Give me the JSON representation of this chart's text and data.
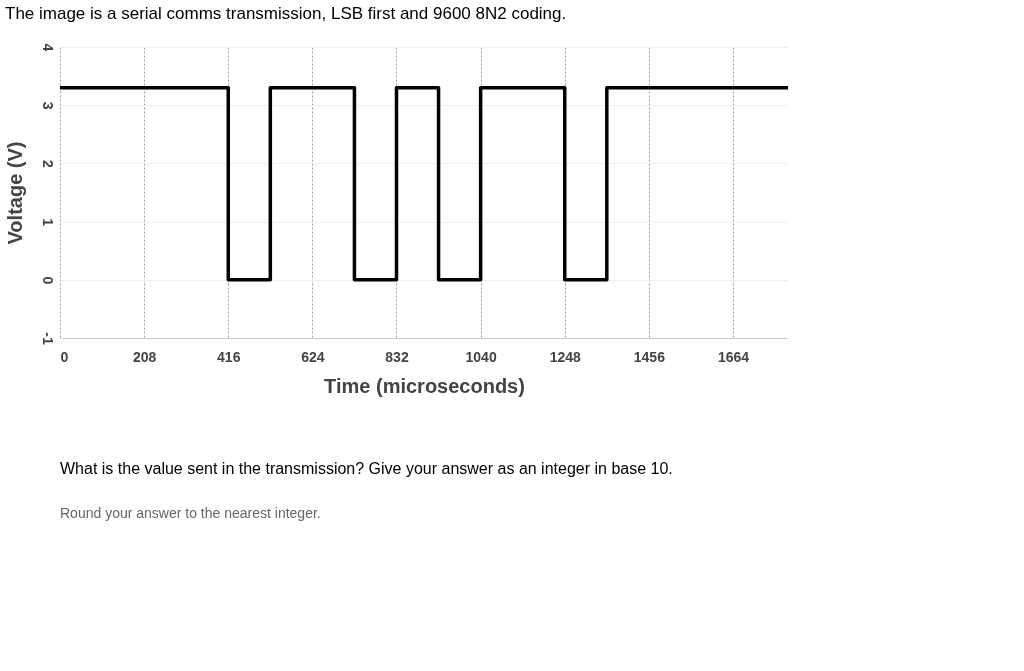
{
  "chart_data": {
    "type": "step",
    "title": "The image is a serial comms transmission, LSB first and 9600 8N2 coding.",
    "xlabel": "Time (microseconds)",
    "ylabel": "Voltage (V)",
    "x": [
      0,
      416,
      520,
      728,
      832,
      936,
      1040,
      1248,
      1352,
      1800
    ],
    "series": [
      {
        "color": "#000000",
        "values": [
          3.3,
          0,
          3.3,
          0,
          3.3,
          0,
          3.3,
          0,
          3.3,
          3.3
        ]
      }
    ],
    "xlim": [
      0,
      1800
    ],
    "xticks": [
      0,
      208,
      416,
      624,
      832,
      1040,
      1248,
      1456,
      1664
    ],
    "ylim": [
      -1,
      4
    ],
    "yticks": [
      -1,
      0,
      1,
      2,
      3,
      4
    ],
    "grid": true,
    "line_style": "solid",
    "annotations": [
      "What is the value sent in the transmission? Give your answer as an integer in base 10.",
      "Round your answer to the nearest integer."
    ]
  }
}
